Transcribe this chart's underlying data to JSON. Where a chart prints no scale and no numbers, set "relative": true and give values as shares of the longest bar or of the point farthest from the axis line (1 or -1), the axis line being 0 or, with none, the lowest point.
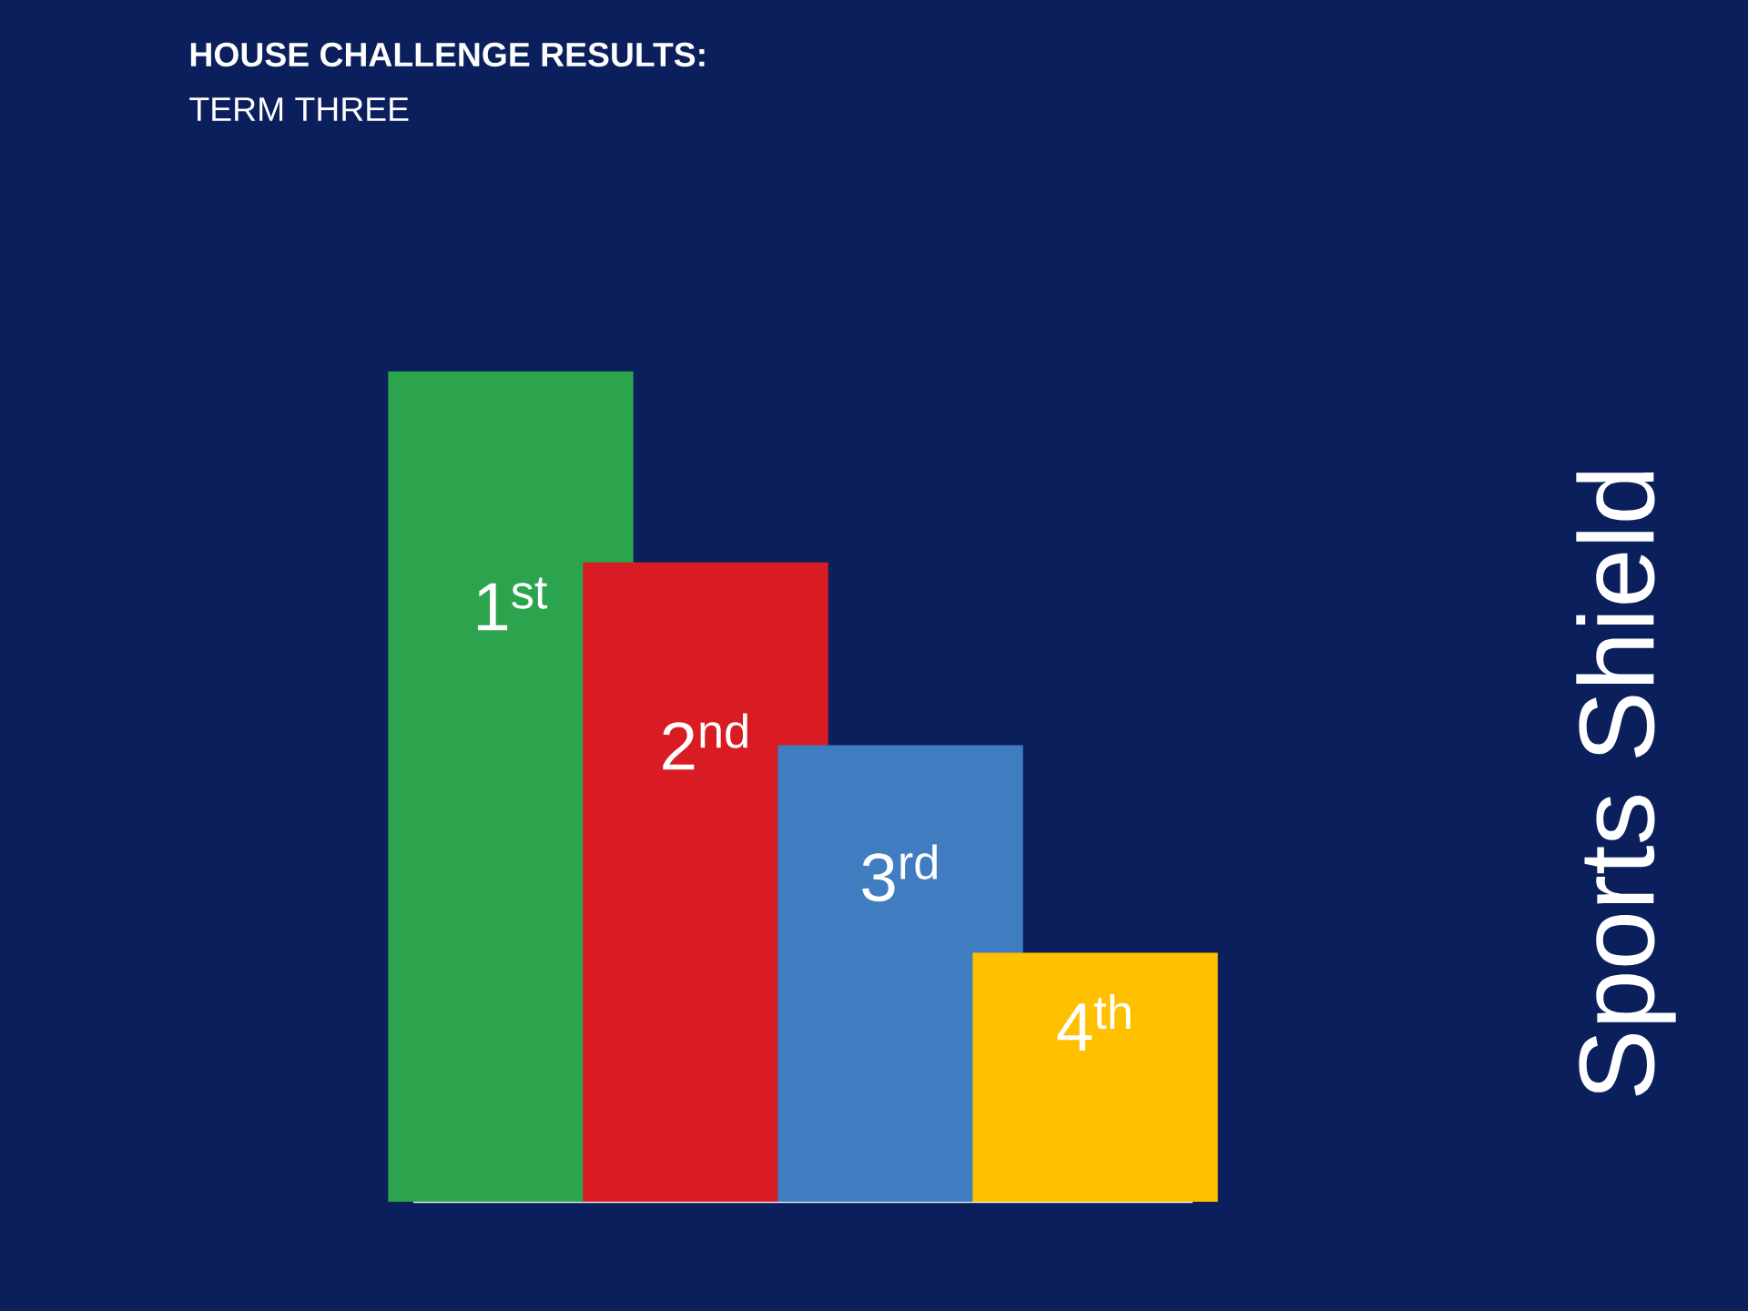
{
  "chart_data": {
    "type": "bar",
    "title": "HOUSE CHALLENGE RESULTS:",
    "subtitle": "TERM THREE",
    "relative": true,
    "categories": [
      "1$^{st}$",
      "2$^{nd}$",
      "3$^{rd}$",
      "4$^{th}$"
    ],
    "values": [
      1,
      0.77,
      0.55,
      0.3
    ],
    "colors": [
      "#2ca44e",
      "#d91c24",
      "#3f7cc0",
      "#ffc000"
    ],
    "annotations": [
      "Sports Shield"
    ]
  }
}
